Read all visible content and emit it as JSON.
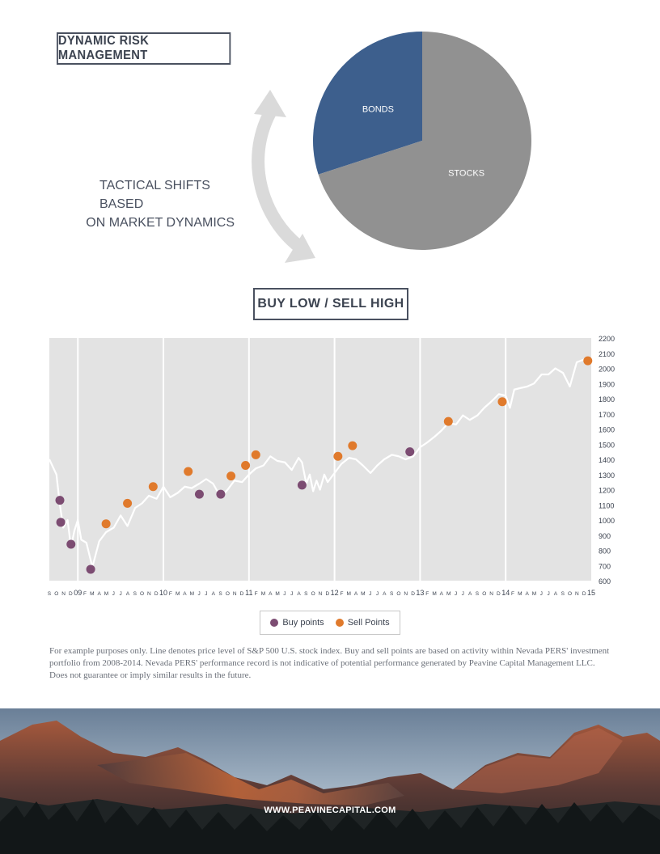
{
  "header": {
    "title": "DYNAMIC RISK MANAGEMENT",
    "tactical_line1": "TACTICAL SHIFTS BASED",
    "tactical_line2": "ON MARKET DYNAMICS"
  },
  "allocation_chart": {
    "type": "pie",
    "slices": [
      {
        "label": "BONDS",
        "value": 30,
        "color": "#3d5f8d"
      },
      {
        "label": "STOCKS",
        "value": 70,
        "color": "#919191"
      }
    ]
  },
  "section_title": "BUY LOW / SELL HIGH",
  "chart_data": {
    "type": "line",
    "ylim": [
      600,
      2200
    ],
    "yticks": [
      600,
      700,
      800,
      900,
      1000,
      1100,
      1200,
      1300,
      1400,
      1500,
      1600,
      1700,
      1800,
      1900,
      2000,
      2100,
      2200
    ],
    "xlim": [
      2008.667,
      2015.0
    ],
    "month_labels": [
      "J",
      "F",
      "M",
      "A",
      "M",
      "J",
      "J",
      "A",
      "S",
      "O",
      "N",
      "D"
    ],
    "year_labels": [
      {
        "x": 2009.0,
        "label": "09"
      },
      {
        "x": 2010.0,
        "label": "10"
      },
      {
        "x": 2011.0,
        "label": "11"
      },
      {
        "x": 2012.0,
        "label": "12"
      },
      {
        "x": 2013.0,
        "label": "13"
      },
      {
        "x": 2014.0,
        "label": "14"
      },
      {
        "x": 2015.0,
        "label": "15"
      }
    ],
    "series": [
      {
        "type": "line",
        "color": "#ffffff",
        "points": [
          [
            2008.667,
            1400
          ],
          [
            2008.75,
            1300
          ],
          [
            2008.79,
            1100
          ],
          [
            2008.83,
            950
          ],
          [
            2008.88,
            1000
          ],
          [
            2008.92,
            820
          ],
          [
            2008.96,
            930
          ],
          [
            2009.0,
            1000
          ],
          [
            2009.04,
            870
          ],
          [
            2009.1,
            850
          ],
          [
            2009.17,
            690
          ],
          [
            2009.25,
            860
          ],
          [
            2009.33,
            920
          ],
          [
            2009.42,
            950
          ],
          [
            2009.5,
            1030
          ],
          [
            2009.58,
            960
          ],
          [
            2009.67,
            1080
          ],
          [
            2009.75,
            1110
          ],
          [
            2009.83,
            1160
          ],
          [
            2009.92,
            1140
          ],
          [
            2010.0,
            1220
          ],
          [
            2010.08,
            1150
          ],
          [
            2010.17,
            1180
          ],
          [
            2010.25,
            1220
          ],
          [
            2010.33,
            1210
          ],
          [
            2010.42,
            1240
          ],
          [
            2010.5,
            1270
          ],
          [
            2010.58,
            1240
          ],
          [
            2010.67,
            1150
          ],
          [
            2010.75,
            1200
          ],
          [
            2010.83,
            1260
          ],
          [
            2010.92,
            1250
          ],
          [
            2011.0,
            1300
          ],
          [
            2011.08,
            1340
          ],
          [
            2011.17,
            1360
          ],
          [
            2011.25,
            1420
          ],
          [
            2011.33,
            1390
          ],
          [
            2011.42,
            1380
          ],
          [
            2011.5,
            1330
          ],
          [
            2011.58,
            1410
          ],
          [
            2011.62,
            1380
          ],
          [
            2011.67,
            1240
          ],
          [
            2011.71,
            1300
          ],
          [
            2011.75,
            1190
          ],
          [
            2011.79,
            1260
          ],
          [
            2011.83,
            1200
          ],
          [
            2011.88,
            1300
          ],
          [
            2011.92,
            1250
          ],
          [
            2012.0,
            1310
          ],
          [
            2012.08,
            1370
          ],
          [
            2012.17,
            1410
          ],
          [
            2012.25,
            1400
          ],
          [
            2012.33,
            1360
          ],
          [
            2012.42,
            1310
          ],
          [
            2012.5,
            1360
          ],
          [
            2012.58,
            1400
          ],
          [
            2012.67,
            1430
          ],
          [
            2012.75,
            1420
          ],
          [
            2012.83,
            1400
          ],
          [
            2012.92,
            1420
          ],
          [
            2013.0,
            1480
          ],
          [
            2013.08,
            1510
          ],
          [
            2013.17,
            1550
          ],
          [
            2013.25,
            1590
          ],
          [
            2013.33,
            1640
          ],
          [
            2013.42,
            1630
          ],
          [
            2013.5,
            1690
          ],
          [
            2013.58,
            1660
          ],
          [
            2013.67,
            1690
          ],
          [
            2013.75,
            1740
          ],
          [
            2013.83,
            1780
          ],
          [
            2013.92,
            1830
          ],
          [
            2014.0,
            1820
          ],
          [
            2014.05,
            1740
          ],
          [
            2014.1,
            1860
          ],
          [
            2014.17,
            1870
          ],
          [
            2014.25,
            1880
          ],
          [
            2014.33,
            1900
          ],
          [
            2014.42,
            1960
          ],
          [
            2014.5,
            1960
          ],
          [
            2014.58,
            2000
          ],
          [
            2014.67,
            1970
          ],
          [
            2014.75,
            1880
          ],
          [
            2014.83,
            2040
          ],
          [
            2014.92,
            2060
          ],
          [
            2015.0,
            2040
          ]
        ]
      },
      {
        "name": "Buy points",
        "type": "scatter",
        "color": "#7c4c72",
        "points": [
          [
            2008.79,
            1130
          ],
          [
            2008.8,
            985
          ],
          [
            2008.92,
            840
          ],
          [
            2009.15,
            675
          ],
          [
            2010.42,
            1170
          ],
          [
            2010.67,
            1170
          ],
          [
            2011.62,
            1230
          ],
          [
            2012.88,
            1450
          ]
        ]
      },
      {
        "name": "Sell Points",
        "type": "scatter",
        "color": "#e07a2c",
        "points": [
          [
            2009.33,
            975
          ],
          [
            2009.58,
            1110
          ],
          [
            2009.88,
            1220
          ],
          [
            2010.29,
            1320
          ],
          [
            2010.79,
            1290
          ],
          [
            2010.96,
            1360
          ],
          [
            2011.08,
            1430
          ],
          [
            2012.04,
            1420
          ],
          [
            2012.21,
            1490
          ],
          [
            2013.33,
            1650
          ],
          [
            2013.96,
            1780
          ],
          [
            2014.96,
            2050
          ]
        ]
      }
    ]
  },
  "legend": {
    "buy_label": "Buy points",
    "sell_label": "Sell Points",
    "buy_color": "#7c4c72",
    "sell_color": "#e07a2c"
  },
  "disclaimer": "For example purposes only. Line denotes price level of S&P 500 U.S. stock index. Buy and sell points are based on activity within Nevada PERS' investment portfolio from 2008-2014. Nevada PERS' performance record is not indicative of potential performance generated by Peavine Capital Management LLC. Does not guarantee or imply similar results in the future.",
  "footer": {
    "website": "WWW.PEAVINECAPITAL.COM"
  }
}
